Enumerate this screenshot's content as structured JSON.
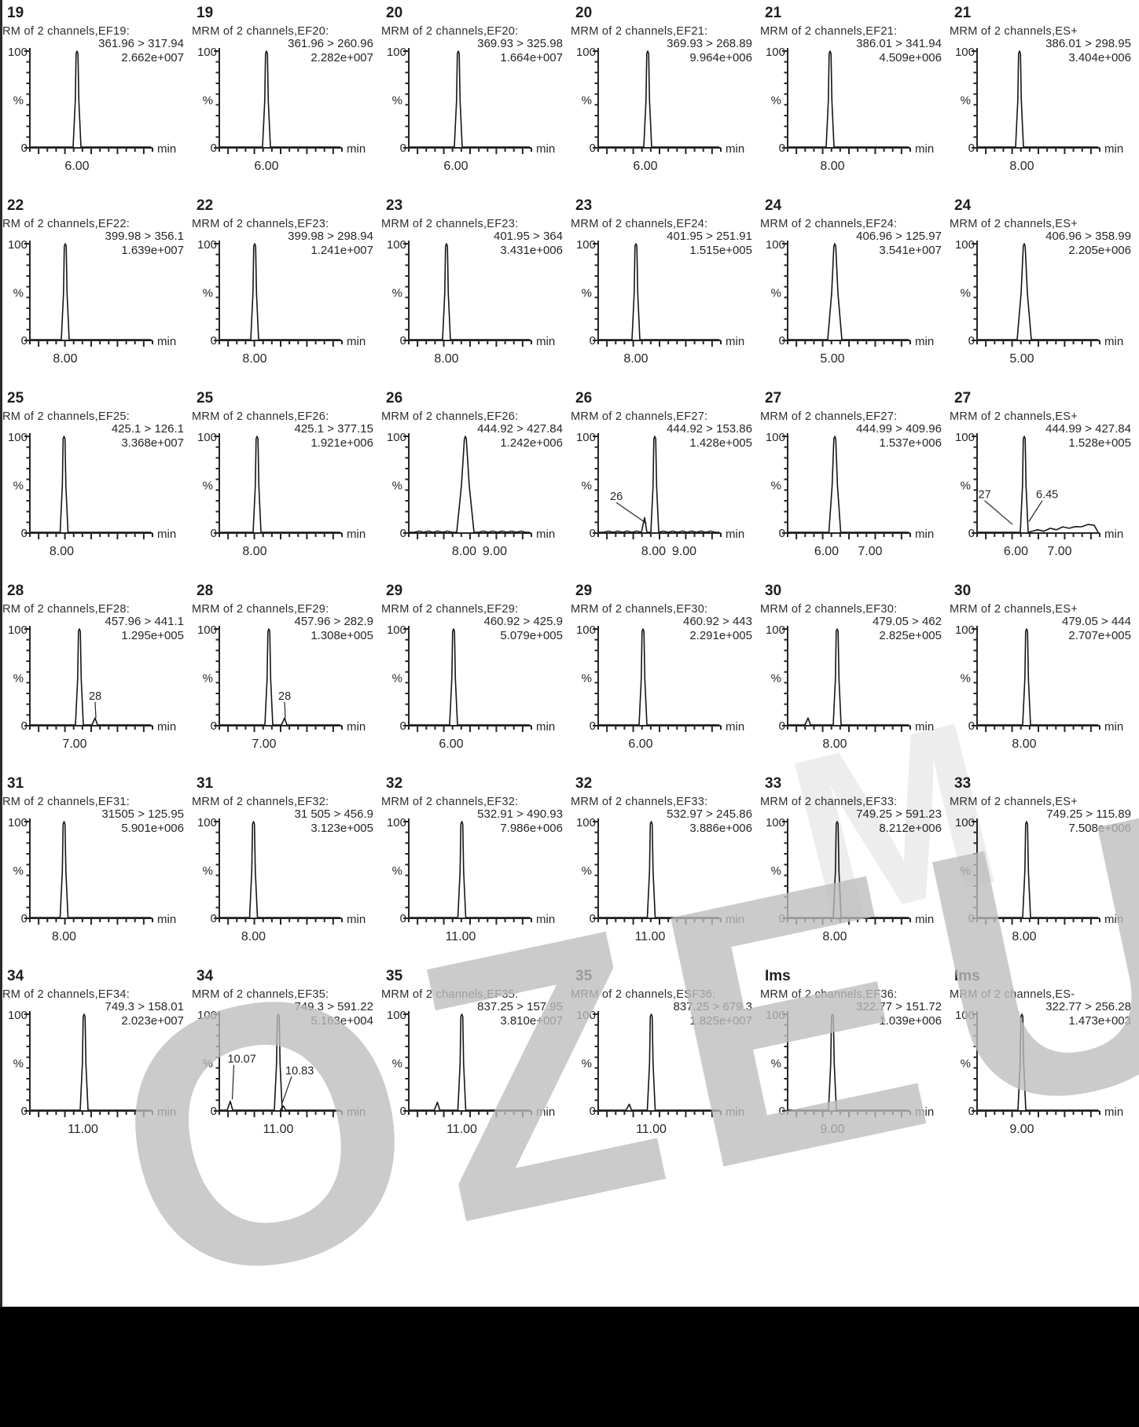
{
  "watermark": {
    "text": "OZEUM",
    "faint_text": "M"
  },
  "colors": {
    "trace": "#161616",
    "axis": "#262626",
    "black_bar": "#000000",
    "watermark_gray": "#bdbdbd"
  },
  "axis_labels": {
    "y_top": "100",
    "y_mid": "%",
    "y_bottom": "0",
    "x_unit": "min"
  },
  "chart_data": {
    "type": "line",
    "description": "Grid of 36 MRM chromatogram panels (6x6), each a single sharp peak, y-axis % (0-100), x-axis retention time in min",
    "ylabel": "%",
    "xlabel": "min",
    "ylim": [
      0,
      100
    ],
    "panels": [
      {
        "num": "19",
        "header": "RM of 2 channels,EF19:",
        "trans": "361.96 > 317.94",
        "inten": "2.662e+007",
        "pk": 0.4,
        "xt": [
          [
            "6.00",
            0.4
          ]
        ]
      },
      {
        "num": "19",
        "header": "MRM of 2 channels,EF20:",
        "trans": "361.96 > 260.96",
        "inten": "2.282e+007",
        "pk": 0.4,
        "xt": [
          [
            "6.00",
            0.4
          ]
        ]
      },
      {
        "num": "20",
        "header": "MRM of 2 channels,EF20:",
        "trans": "369.93 > 325.98",
        "inten": "1.664e+007",
        "pk": 0.42,
        "xt": [
          [
            "6.00",
            0.4
          ]
        ]
      },
      {
        "num": "20",
        "header": "MRM of 2 channels,EF21:",
        "trans": "369.93 > 268.89",
        "inten": "9.964e+006",
        "pk": 0.42,
        "xt": [
          [
            "6.00",
            0.4
          ]
        ]
      },
      {
        "num": "21",
        "header": "MRM of 2 channels,EF21:",
        "trans": "386.01 > 341.94",
        "inten": "4.509e+006",
        "pk": 0.36,
        "xt": [
          [
            "8.00",
            0.38
          ]
        ]
      },
      {
        "num": "21",
        "header": "MRM of 2 channels,ES+",
        "trans": "386.01 > 298.95",
        "inten": "3.404e+006",
        "pk": 0.36,
        "xt": [
          [
            "8.00",
            0.38
          ]
        ]
      },
      {
        "num": "22",
        "header": "RM of 2 channels,EF22:",
        "trans": "399.98 > 356.1",
        "inten": "1.639e+007",
        "pk": 0.3,
        "xt": [
          [
            "8.00",
            0.3
          ]
        ]
      },
      {
        "num": "22",
        "header": "MRM of 2 channels,EF23:",
        "trans": "399.98 > 298.94",
        "inten": "1.241e+007",
        "pk": 0.3,
        "xt": [
          [
            "8.00",
            0.3
          ]
        ]
      },
      {
        "num": "23",
        "header": "MRM of 2 channels,EF23:",
        "trans": "401.95 > 364",
        "inten": "3.431e+006",
        "pk": 0.32,
        "xt": [
          [
            "8.00",
            0.32
          ]
        ]
      },
      {
        "num": "23",
        "header": "MRM of 2 channels,EF24:",
        "trans": "401.95 > 251.91",
        "inten": "1.515e+005",
        "pk": 0.32,
        "xt": [
          [
            "8.00",
            0.32
          ]
        ]
      },
      {
        "num": "24",
        "header": "MRM of 2 channels,EF24:",
        "trans": "406.96 > 125.97",
        "inten": "3.541e+007",
        "pk": 0.4,
        "w": 1.8,
        "xt": [
          [
            "5.00",
            0.38
          ]
        ]
      },
      {
        "num": "24",
        "header": "MRM of 2 channels,ES+",
        "trans": "406.96 > 358.99",
        "inten": "2.205e+006",
        "pk": 0.4,
        "w": 1.8,
        "xt": [
          [
            "5.00",
            0.38
          ]
        ]
      },
      {
        "num": "25",
        "header": "RM of 2 channels,EF25:",
        "trans": "425.1 > 126.1",
        "inten": "3.368e+007",
        "pk": 0.29,
        "xt": [
          [
            "8.00",
            0.27
          ]
        ]
      },
      {
        "num": "25",
        "header": "MRM of 2 channels,EF26:",
        "trans": "425.1 > 377.15",
        "inten": "1.921e+006",
        "pk": 0.32,
        "xt": [
          [
            "8.00",
            0.3
          ]
        ]
      },
      {
        "num": "26",
        "header": "MRM of 2 channels,EF26:",
        "trans": "444.92 > 427.84",
        "inten": "1.242e+006",
        "pk": 0.48,
        "w": 2.2,
        "noise": 1,
        "xt": [
          [
            "8.00",
            0.47
          ],
          [
            "9.00",
            0.73
          ]
        ]
      },
      {
        "num": "26",
        "header": "MRM of 2 channels,EF27:",
        "trans": "444.92 > 153.86",
        "inten": "1.428e+005",
        "pk": 0.48,
        "noise": 1,
        "bumps": [
          [
            0.4,
            0.16
          ]
        ],
        "ann": [
          [
            "26",
            0.1,
            0.66,
            0.41,
            0.9
          ]
        ],
        "xt": [
          [
            "8.00",
            0.47
          ],
          [
            "9.00",
            0.73
          ]
        ]
      },
      {
        "num": "27",
        "header": "MRM of 2 channels,EF27:",
        "trans": "444.99 > 409.96",
        "inten": "1.537e+006",
        "pk": 0.4,
        "w": 1.5,
        "xt": [
          [
            "6.00",
            0.33
          ],
          [
            "7.00",
            0.7
          ]
        ]
      },
      {
        "num": "27",
        "header": "MRM of 2 channels,ES+",
        "trans": "444.99 > 427.84",
        "inten": "1.528e+005",
        "pk": 0.4,
        "noise": 2,
        "ann": [
          [
            "27",
            0.01,
            0.64,
            0.3,
            0.91
          ],
          [
            "6.45",
            0.5,
            0.64,
            0.44,
            0.88
          ]
        ],
        "xt": [
          [
            "6.00",
            0.33
          ],
          [
            "7.00",
            0.7
          ]
        ]
      },
      {
        "num": "28",
        "header": "RM of 2 channels,EF28:",
        "trans": "457.96 > 441.1",
        "inten": "1.295e+005",
        "pk": 0.42,
        "bumps": [
          [
            0.56,
            0.08
          ]
        ],
        "ann": [
          [
            "28",
            0.5,
            0.73,
            0.56,
            0.92
          ]
        ],
        "xt": [
          [
            "7.00",
            0.38
          ]
        ]
      },
      {
        "num": "28",
        "header": "MRM of 2 channels,EF29:",
        "trans": "457.96 > 282.9",
        "inten": "1.308e+005",
        "pk": 0.42,
        "bumps": [
          [
            0.56,
            0.08
          ]
        ],
        "ann": [
          [
            "28",
            0.5,
            0.73,
            0.56,
            0.92
          ]
        ],
        "xt": [
          [
            "7.00",
            0.38
          ]
        ]
      },
      {
        "num": "29",
        "header": "MRM of 2 channels,EF29:",
        "trans": "460.92 > 425.9",
        "inten": "5.079e+005",
        "pk": 0.38,
        "xt": [
          [
            "6.00",
            0.36
          ]
        ]
      },
      {
        "num": "29",
        "header": "MRM of 2 channels,EF30:",
        "trans": "460.92 > 443",
        "inten": "2.291e+005",
        "pk": 0.38,
        "xt": [
          [
            "6.00",
            0.36
          ]
        ]
      },
      {
        "num": "30",
        "header": "MRM of 2 channels,EF30:",
        "trans": "479.05 > 462",
        "inten": "2.825e+005",
        "pk": 0.42,
        "bumps": [
          [
            0.18,
            0.08
          ]
        ],
        "xt": [
          [
            "8.00",
            0.4
          ]
        ]
      },
      {
        "num": "30",
        "header": "MRM of 2 channels,ES+",
        "trans": "479.05 > 444",
        "inten": "2.707e+005",
        "pk": 0.42,
        "xt": [
          [
            "8.00",
            0.4
          ]
        ]
      },
      {
        "num": "31",
        "header": "RM of 2 channels,EF31:",
        "trans": "31505 > 125.95",
        "inten": "5.901e+006",
        "pk": 0.29,
        "xt": [
          [
            "8.00",
            0.29
          ]
        ]
      },
      {
        "num": "31",
        "header": "MRM of 2 channels,EF32:",
        "trans": "31 505 > 456.9",
        "inten": "3.123e+005",
        "pk": 0.29,
        "xt": [
          [
            "8.00",
            0.29
          ]
        ]
      },
      {
        "num": "32",
        "header": "MRM of 2 channels,EF32:",
        "trans": "532.91 > 490.93",
        "inten": "7.986e+006",
        "pk": 0.45,
        "xt": [
          [
            "11.00",
            0.44
          ]
        ]
      },
      {
        "num": "32",
        "header": "MRM of 2 channels,EF33:",
        "trans": "532.97 > 245.86",
        "inten": "3.886e+006",
        "pk": 0.45,
        "xt": [
          [
            "11.00",
            0.44
          ]
        ]
      },
      {
        "num": "33",
        "header": "MRM of 2 channels,EF33:",
        "trans": "749.25 > 591.23",
        "inten": "8.212e+006",
        "pk": 0.42,
        "xt": [
          [
            "8.00",
            0.4
          ]
        ]
      },
      {
        "num": "33",
        "header": "MRM of 2 channels,ES+",
        "trans": "749.25 > 115.89",
        "inten": "7.508e+006",
        "pk": 0.42,
        "xt": [
          [
            "8.00",
            0.4
          ]
        ]
      },
      {
        "num": "34",
        "header": "RM of 2 channels,EF34:",
        "trans": "749.3 > 158.01",
        "inten": "2.023e+007",
        "pk": 0.46,
        "xt": [
          [
            "11.00",
            0.45
          ]
        ]
      },
      {
        "num": "34",
        "header": "MRM of 2 channels,EF35:",
        "trans": "749.3 > 591.22",
        "inten": "5.163e+004",
        "pk": 0.5,
        "bumps": [
          [
            0.1,
            0.1
          ],
          [
            0.55,
            0.05
          ]
        ],
        "ann": [
          [
            "10.07",
            0.07,
            0.5,
            0.11,
            0.88
          ],
          [
            "10.83",
            0.56,
            0.62,
            0.53,
            0.93
          ]
        ],
        "xt": [
          [
            "11.00",
            0.5
          ]
        ]
      },
      {
        "num": "35",
        "header": "MRM of 2 channels,EF35:",
        "trans": "837.25 > 157.95",
        "inten": "3.810e+007",
        "pk": 0.45,
        "bumps": [
          [
            0.25,
            0.09
          ]
        ],
        "xt": [
          [
            "11.00",
            0.45
          ]
        ]
      },
      {
        "num": "35",
        "header": "MRM of 2 channels,ESF36:",
        "trans": "837.25 > 679.3",
        "inten": "1.825e+007",
        "pk": 0.45,
        "bumps": [
          [
            0.27,
            0.07
          ]
        ],
        "xt": [
          [
            "11.00",
            0.45
          ]
        ]
      },
      {
        "num": "Ims",
        "header": "MRM of 2 channels,EF36:",
        "trans": "322.77 > 151.72",
        "inten": "1.039e+006",
        "pk": 0.38,
        "xt": [
          [
            "9.00",
            0.38
          ]
        ]
      },
      {
        "num": "Ims",
        "header": "MRM of 2 channels,ES-",
        "trans": "322.77 > 256.28",
        "inten": "1.473e+003",
        "pk": 0.38,
        "xt": [
          [
            "9.00",
            0.38
          ]
        ]
      }
    ]
  }
}
